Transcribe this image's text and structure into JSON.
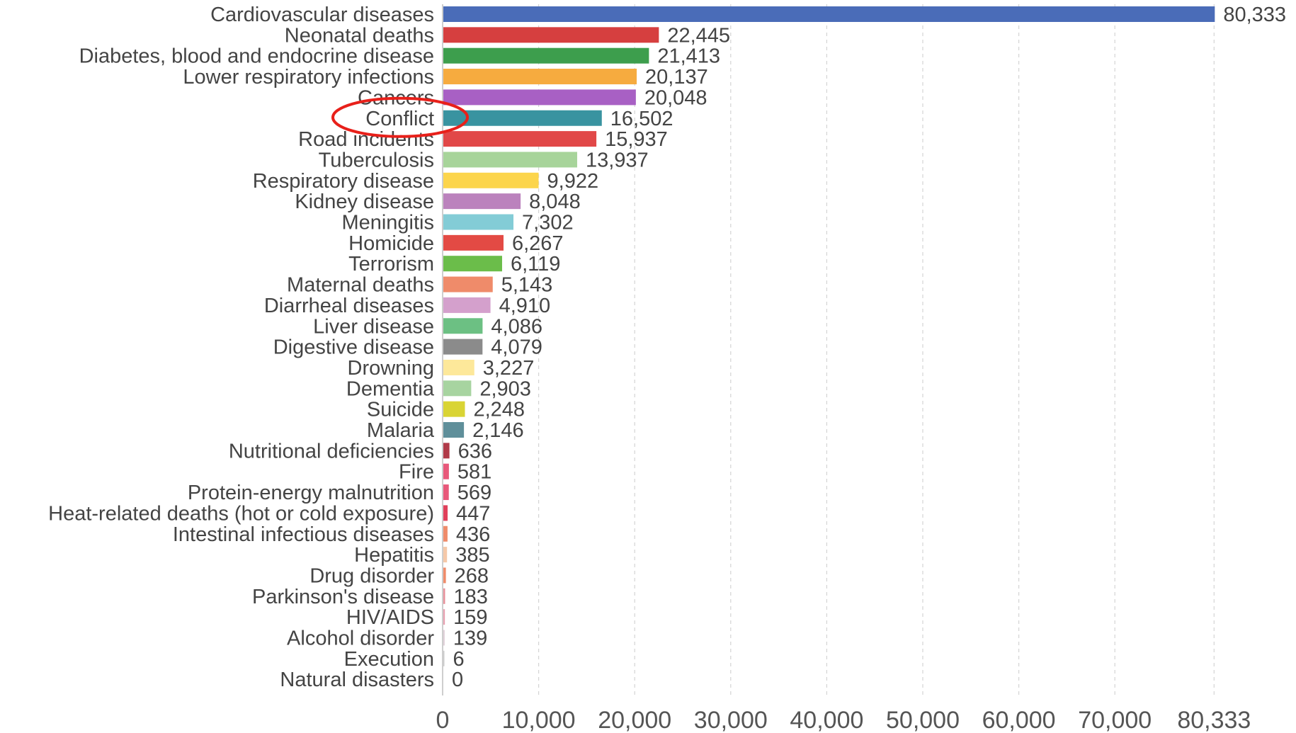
{
  "chart_data": {
    "type": "bar",
    "orientation": "horizontal",
    "categories": [
      "Cardiovascular diseases",
      "Neonatal deaths",
      "Diabetes, blood and endocrine disease",
      "Lower respiratory infections",
      "Cancers",
      "Conflict",
      "Road incidents",
      "Tuberculosis",
      "Respiratory disease",
      "Kidney disease",
      "Meningitis",
      "Homicide",
      "Terrorism",
      "Maternal deaths",
      "Diarrheal diseases",
      "Liver disease",
      "Digestive disease",
      "Drowning",
      "Dementia",
      "Suicide",
      "Malaria",
      "Nutritional deficiencies",
      "Fire",
      "Protein-energy malnutrition",
      "Heat-related deaths (hot or cold exposure)",
      "Intestinal infectious diseases",
      "Hepatitis",
      "Drug disorder",
      "Parkinson's disease",
      "HIV/AIDS",
      "Alcohol disorder",
      "Execution",
      "Natural disasters"
    ],
    "values": [
      80333,
      22445,
      21413,
      20137,
      20048,
      16502,
      15937,
      13937,
      9922,
      8048,
      7302,
      6267,
      6119,
      5143,
      4910,
      4086,
      4079,
      3227,
      2903,
      2248,
      2146,
      636,
      581,
      569,
      447,
      436,
      385,
      268,
      183,
      159,
      139,
      6,
      0
    ],
    "value_labels": [
      "80,333",
      "22,445",
      "21,413",
      "20,137",
      "20,048",
      "16,502",
      "15,937",
      "13,937",
      "9,922",
      "8,048",
      "7,302",
      "6,267",
      "6,119",
      "5,143",
      "4,910",
      "4,086",
      "4,079",
      "3,227",
      "2,903",
      "2,248",
      "2,146",
      "636",
      "581",
      "569",
      "447",
      "436",
      "385",
      "268",
      "183",
      "159",
      "139",
      "6",
      "0"
    ],
    "colors": [
      "#4a6cb8",
      "#d63f3f",
      "#3d9e4d",
      "#f6ab3f",
      "#a860c4",
      "#3993a0",
      "#e14848",
      "#a7d49a",
      "#fcd54c",
      "#bb82bd",
      "#83ccd6",
      "#e34a44",
      "#6bbd4a",
      "#ef8b6a",
      "#d4a0cc",
      "#6cc083",
      "#8b8b8b",
      "#fde89a",
      "#a7d4a0",
      "#d9d434",
      "#5f8f9a",
      "#b03a48",
      "#e8587a",
      "#e8587a",
      "#e0405a",
      "#ef8b6a",
      "#f5c8a8",
      "#ef8b6a",
      "#e8909a",
      "#e8a0b0",
      "#e0d0d8",
      "#cccccc",
      "#cccccc"
    ],
    "x_ticks": [
      "0",
      "10,000",
      "20,000",
      "30,000",
      "40,000",
      "50,000",
      "60,000",
      "70,000",
      "80,333"
    ],
    "x_tick_values": [
      0,
      10000,
      20000,
      30000,
      40000,
      50000,
      60000,
      70000,
      80333
    ],
    "xlim": [
      0,
      80333
    ],
    "grid": "vertical dashed",
    "highlighted_category": "Conflict",
    "highlight_color": "#e8201a"
  }
}
